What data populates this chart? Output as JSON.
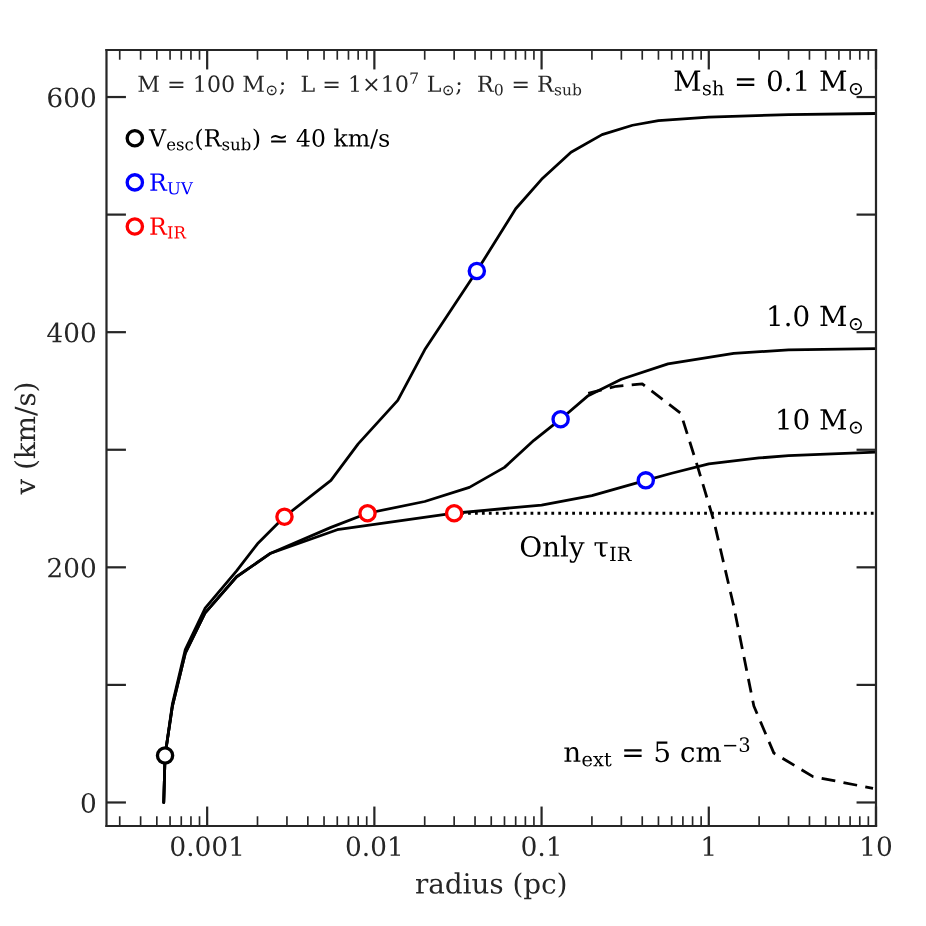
{
  "chart_data": {
    "type": "line",
    "xlabel": "radius (pc)",
    "ylabel": "v (km/s)",
    "log": "x",
    "xlim": [
      0.00025,
      10
    ],
    "ylim": [
      -20,
      640
    ],
    "xticks": [
      0.001,
      0.01,
      0.1,
      1,
      10
    ],
    "yticks": [
      0,
      {
        "value": 100,
        "label": null
      },
      200,
      {
        "value": 300,
        "label": null
      },
      400,
      {
        "value": 500,
        "label": null
      },
      600
    ],
    "grid": false,
    "legend": "top left",
    "series": [
      {
        "name": "M$_{sh}$ = 0.1 M$_{⊙}$",
        "color": "#000000",
        "line_style": "solid",
        "x": [
          0.00055,
          0.00056,
          0.00062,
          0.00074,
          0.00097,
          0.0015,
          0.002,
          0.0029,
          0.0055,
          0.008,
          0.0138,
          0.02,
          0.041,
          0.07,
          0.1,
          0.15,
          0.23,
          0.35,
          0.5,
          1,
          3,
          10
        ],
        "values": [
          0,
          40,
          84,
          130,
          165,
          197,
          220,
          243,
          274,
          305,
          342,
          385,
          452,
          505,
          530,
          553,
          568,
          576,
          580,
          583,
          585,
          586
        ]
      },
      {
        "name": "1.0 M$_{⊙}$",
        "color": "#000000",
        "line_style": "solid",
        "x": [
          0.00055,
          0.00056,
          0.00062,
          0.00074,
          0.00097,
          0.0015,
          0.0024,
          0.0055,
          0.0091,
          0.02,
          0.037,
          0.06,
          0.09,
          0.13,
          0.19,
          0.3,
          0.57,
          1.41,
          3,
          10
        ],
        "values": [
          0,
          40,
          82,
          127,
          161,
          192,
          212,
          234,
          246,
          256,
          268,
          285,
          308,
          326,
          346,
          360,
          373,
          382,
          385,
          386
        ]
      },
      {
        "name": "10 M$_{⊙}$",
        "color": "#000000",
        "line_style": "solid",
        "x": [
          0.00055,
          0.00056,
          0.00062,
          0.00074,
          0.00097,
          0.0015,
          0.0024,
          0.006,
          0.0148,
          0.03,
          0.1,
          0.2,
          0.42,
          0.6,
          1,
          2,
          3,
          10
        ],
        "values": [
          0,
          40,
          82,
          127,
          161,
          192,
          212,
          232,
          240,
          246,
          253,
          261,
          274,
          280,
          288,
          293,
          295,
          298
        ]
      },
      {
        "name": "Only τ$_{IR}$",
        "color": "#000000",
        "line_style": "dotted",
        "x": [
          0.03,
          0.1,
          1,
          10
        ],
        "values": [
          246,
          246,
          246,
          246
        ]
      },
      {
        "name": "n$_{ext}$ = 5 cm$^{−3}$",
        "color": "#000000",
        "line_style": "dashed",
        "x": [
          0.19,
          0.28,
          0.4,
          0.68,
          0.86,
          1.07,
          1.41,
          1.86,
          2.45,
          4.2,
          9.6
        ],
        "values": [
          348,
          354,
          356,
          331,
          285,
          240,
          167,
          82,
          42,
          22,
          12
        ]
      },
      {
        "type": "scatter",
        "marker": "circle",
        "name": "V$_{esc}$(R$_{sub}$) ≃ 40 km/s",
        "color": "#000000",
        "x": [
          0.00056
        ],
        "values": [
          40
        ]
      },
      {
        "type": "scatter",
        "marker": "circle",
        "name": "R$_{UV}$",
        "color": "#0000ff",
        "x": [
          0.041,
          0.13,
          0.42
        ],
        "values": [
          452,
          326,
          274
        ]
      },
      {
        "type": "scatter",
        "marker": "circle",
        "name": "R$_{IR}$",
        "color": "#ff0000",
        "x": [
          0.0029,
          0.0091,
          0.03
        ],
        "values": [
          243,
          246,
          246
        ]
      }
    ],
    "annotations": [
      "M = 100 M$_{⊙}$;  L = 1×10$^{7}$ L$_{⊙}$;  R$_{0}$ = R$_{sub}$"
    ]
  }
}
